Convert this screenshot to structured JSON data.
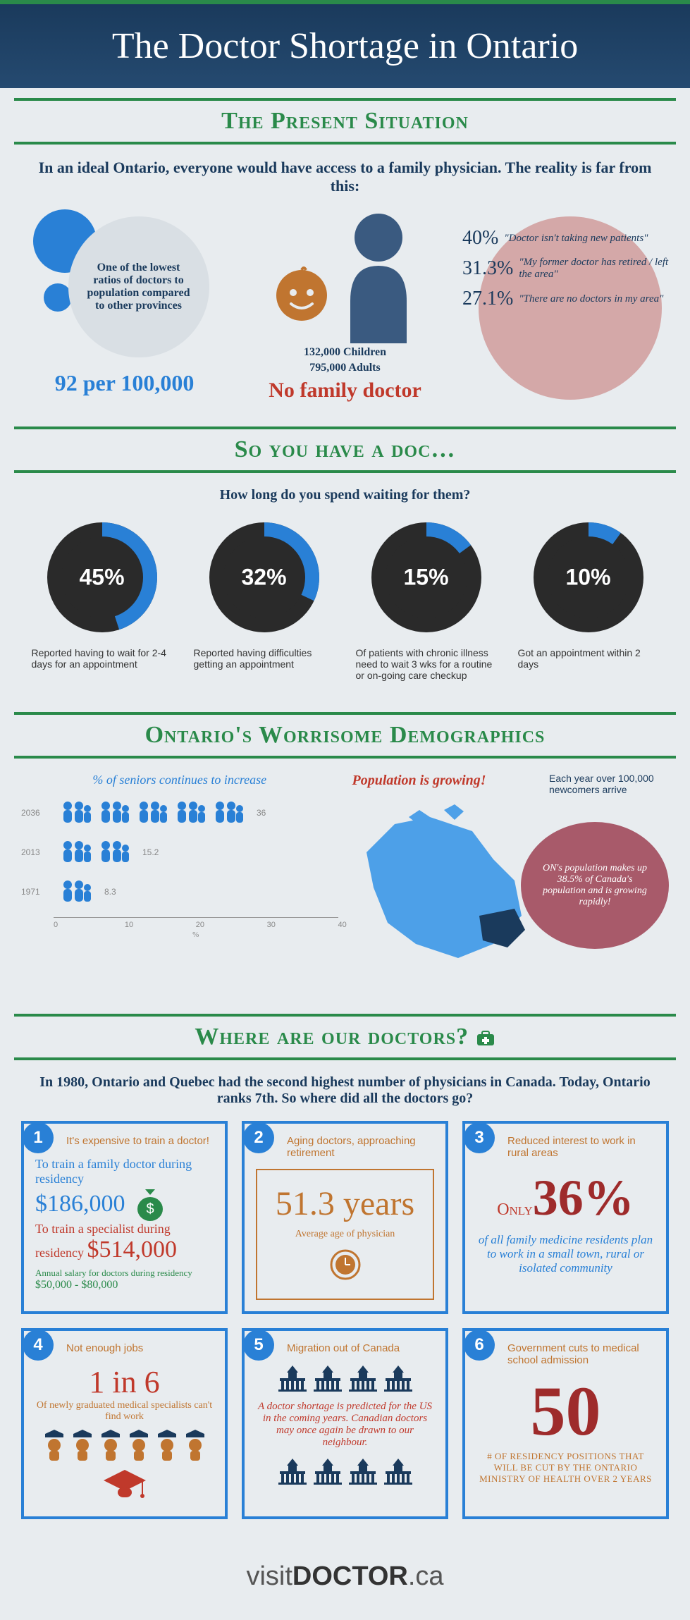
{
  "header": {
    "title": "The Doctor Shortage in Ontario"
  },
  "s1": {
    "heading": "The Present Situation",
    "intro": "In an ideal Ontario, everyone would have access to a family physician. The reality is far from this:",
    "ratio_text": "One of the lowest ratios of doctors to population compared to other provinces",
    "ratio_value": "92 per 100,000",
    "children": "132,000 Children",
    "adults": "795,000 Adults",
    "no_doc": "No family doctor",
    "reasons": [
      {
        "pct": "40%",
        "text": "\"Doctor isn't taking new patients\""
      },
      {
        "pct": "31.3%",
        "text": "\"My former doctor has retired / left the area\""
      },
      {
        "pct": "27.1%",
        "text": "\"There are no doctors in my area\""
      }
    ],
    "colors": {
      "blue": "#2980d6",
      "red": "#c0392b",
      "pink": "#d4a8a8"
    }
  },
  "s2": {
    "heading": "So you have a doc…",
    "sub": "How long do you spend waiting for them?",
    "donuts": [
      {
        "pct": 45,
        "label": "45%",
        "desc": "Reported having to wait for 2-4 days for an appointment"
      },
      {
        "pct": 32,
        "label": "32%",
        "desc": "Reported having difficulties getting an appointment"
      },
      {
        "pct": 15,
        "label": "15%",
        "desc": "Of patients with chronic illness need to wait 3 wks for a routine or on-going care checkup"
      },
      {
        "pct": 10,
        "label": "10%",
        "desc": "Got an appointment within 2 days"
      }
    ],
    "donut_colors": {
      "fill": "#2980d6",
      "track": "#2a2a2a",
      "bg": "#e8ecef"
    }
  },
  "s3": {
    "heading": "Ontario's Worrisome Demographics",
    "left_title": "% of seniors continues to increase",
    "bars": [
      {
        "year": "2036",
        "value": 36,
        "icons": 5
      },
      {
        "year": "2013",
        "value": 15.2,
        "icons": 2
      },
      {
        "year": "1971",
        "value": 8.3,
        "icons": 1
      }
    ],
    "axis_ticks": [
      0,
      10,
      20,
      30,
      40
    ],
    "axis_label": "%",
    "pop_grow": "Population is growing!",
    "newcomers": "Each year over 100,000 newcomers arrive",
    "bubble": "ON's population makes up 38.5% of Canada's population and is growing rapidly!",
    "colors": {
      "people": "#2980d6",
      "bubble": "#a85a6a"
    }
  },
  "s4": {
    "heading": "Where are our doctors?",
    "intro": "In 1980, Ontario and Quebec had the second highest number of physicians in Canada.  Today, Ontario ranks 7th. So where did all the doctors go?",
    "cards": [
      {
        "n": "1",
        "title": "It's expensive to train a doctor!",
        "l1": "To train a family doctor during residency",
        "v1": "$186,000",
        "l2": "To train a specialist during residency",
        "v2": "$514,000",
        "l3": "Annual salary for doctors during residency",
        "v3": "$50,000 - $80,000"
      },
      {
        "n": "2",
        "title": "Aging doctors, approaching retirement",
        "big": "51.3 years",
        "sub": "Average age of physician"
      },
      {
        "n": "3",
        "title": "Reduced interest to work in rural areas",
        "pre": "Only",
        "big": "36%",
        "sub": "of all family medicine residents plan to work in a small town, rural or isolated community"
      },
      {
        "n": "4",
        "title": "Not enough jobs",
        "big": "1 in 6",
        "sub": "Of newly graduated medical specialists can't find work"
      },
      {
        "n": "5",
        "title": "Migration out of Canada",
        "body": "A doctor shortage is predicted for the US in the coming years. Canadian doctors may once again be drawn to our neighbour."
      },
      {
        "n": "6",
        "title": "Government cuts to medical school admission",
        "big": "50",
        "sub": "# OF RESIDENCY POSITIONS THAT WILL BE CUT BY THE ONTARIO MINISTRY OF HEALTH OVER 2 YEARS"
      }
    ]
  },
  "footer": {
    "pre": "visit",
    "bold": "DOCTOR",
    "suf": ".ca"
  }
}
